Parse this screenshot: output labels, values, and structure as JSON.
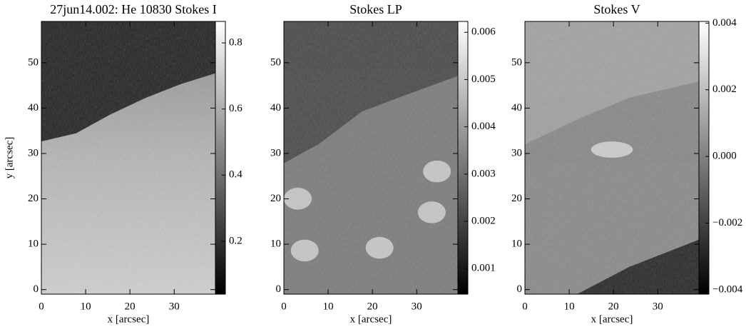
{
  "chart_data": [
    {
      "type": "image",
      "title": "27jun14.002: He 10830 Stokes I",
      "xlabel": "x [arcsec]",
      "ylabel": "y [arcsec]",
      "xlim": [
        0,
        39.3
      ],
      "ylim": [
        -1,
        59.1
      ],
      "xticks": [
        0,
        10,
        20,
        30
      ],
      "yticks": [
        0,
        10,
        20,
        30,
        40,
        50
      ],
      "clim": [
        0.04,
        0.865
      ],
      "cticks": [
        0.2,
        0.4,
        0.6,
        0.8
      ],
      "colormap": "gray"
    },
    {
      "type": "image",
      "title": "Stokes LP",
      "xlabel": "x [arcsec]",
      "xlim": [
        0,
        39.3
      ],
      "ylim": [
        -1,
        59.1
      ],
      "xticks": [
        0,
        10,
        20,
        30
      ],
      "yticks": [
        0,
        10,
        20,
        30,
        40,
        50
      ],
      "clim": [
        0.00046,
        0.00623
      ],
      "cticks": [
        0.001,
        0.002,
        0.003,
        0.004,
        0.005,
        0.006
      ],
      "colormap": "gray"
    },
    {
      "type": "image",
      "title": "Stokes V",
      "xlabel": "x [arcsec]",
      "xlim": [
        0,
        39.3
      ],
      "ylim": [
        -1,
        59.1
      ],
      "xticks": [
        0,
        10,
        20,
        30
      ],
      "yticks": [
        0,
        10,
        20,
        30,
        40,
        50
      ],
      "clim": [
        -0.00413,
        0.00405
      ],
      "cticks": [
        {
          "value": -0.004,
          "label": "−0.004"
        },
        {
          "value": -0.002,
          "label": "−0.002"
        },
        {
          "value": 0,
          "label": "0.000"
        },
        0.002,
        0.004
      ],
      "colormap": "gray"
    }
  ]
}
